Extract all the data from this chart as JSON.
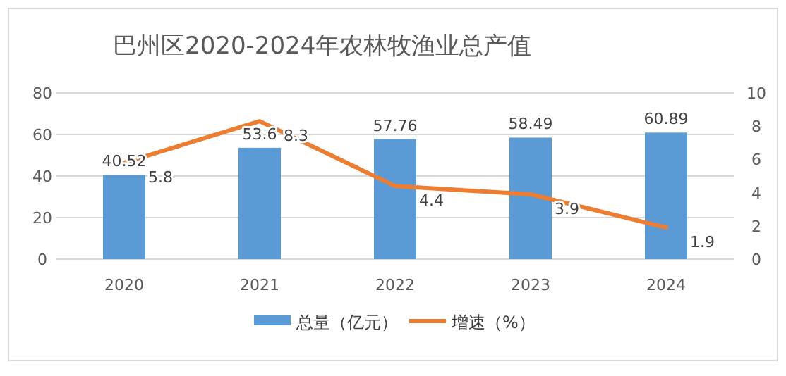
{
  "chart_data": {
    "type": "bar",
    "title": "巴州区2020-2024年农林牧渔业总产值",
    "categories": [
      "2020",
      "2021",
      "2022",
      "2023",
      "2024"
    ],
    "series": [
      {
        "name": "总量（亿元）",
        "color": "#5b9bd5",
        "values": [
          40.52,
          53.6,
          57.76,
          58.49,
          60.89
        ]
      },
      {
        "name": "增速（%）",
        "type": "line",
        "axis": "y2",
        "color": "#ed7d31",
        "values": [
          5.8,
          8.3,
          4.4,
          3.9,
          1.9
        ]
      }
    ],
    "ylim": [
      0,
      80
    ],
    "yticks": [
      0,
      20,
      40,
      60,
      80
    ],
    "y2lim": [
      0,
      10
    ],
    "y2ticks": [
      0,
      2,
      4,
      6,
      8,
      10
    ],
    "data_labels": true,
    "grid": "y",
    "legend": "bottom",
    "marker": "none",
    "line_style": "solid"
  }
}
